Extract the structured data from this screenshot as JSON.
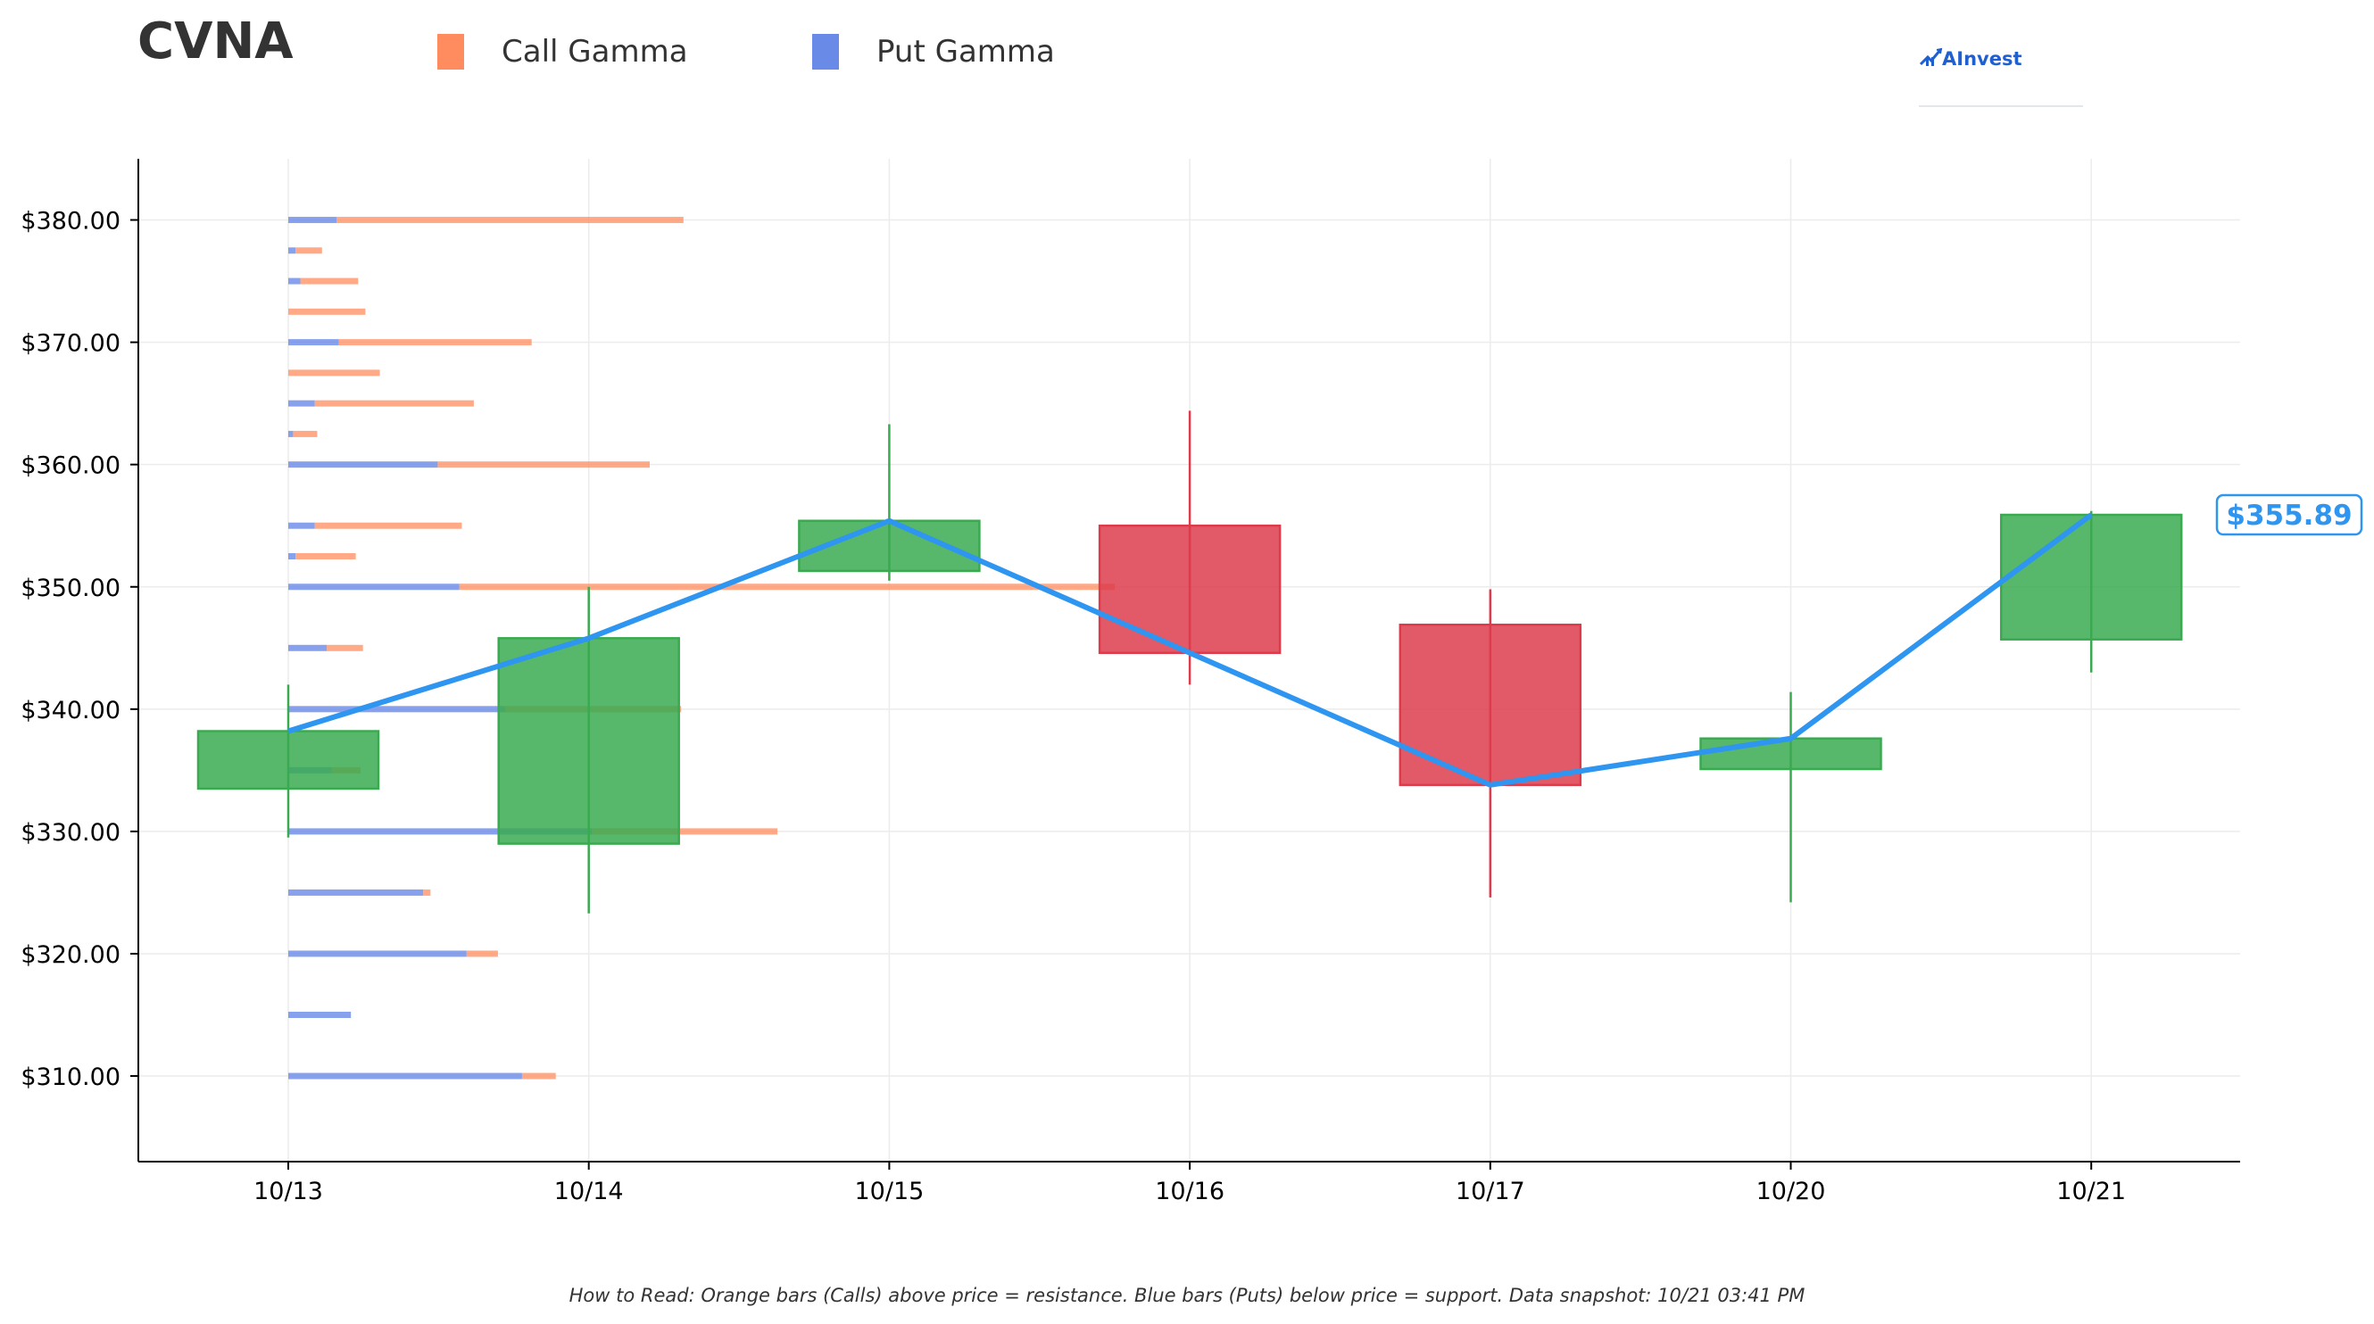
{
  "header": {
    "ticker": "CVNA",
    "brand": "AInvest"
  },
  "legend": [
    {
      "label": "Call Gamma",
      "color": "#ff8c5f"
    },
    {
      "label": "Put Gamma",
      "color": "#6a8ae8"
    }
  ],
  "footer": {
    "note": "How to Read: Orange bars (Calls) above price = resistance. Blue bars (Puts) below price = support. Data snapshot: 10/21 03:41 PM"
  },
  "colors": {
    "up": "#3aaa50",
    "down": "#dd3c4c",
    "price_line": "#2e95f0",
    "call": "#ff8c5f",
    "put": "#6a8ae8",
    "grid": "#ececec"
  },
  "chart_data": {
    "type": "candlestick",
    "title": "CVNA",
    "categories": [
      "10/13",
      "10/14",
      "10/15",
      "10/16",
      "10/17",
      "10/20",
      "10/21"
    ],
    "ylim": [
      303,
      385
    ],
    "yticks": [
      310,
      320,
      330,
      340,
      350,
      360,
      370,
      380
    ],
    "ytick_labels": [
      "$310.00",
      "$320.00",
      "$330.00",
      "$340.00",
      "$350.00",
      "$360.00",
      "$370.00",
      "$380.00"
    ],
    "grid": true,
    "candles": [
      {
        "date": "10/13",
        "open": 333.5,
        "high": 342.0,
        "low": 329.5,
        "close": 338.2
      },
      {
        "date": "10/14",
        "open": 329.0,
        "high": 350.0,
        "low": 323.3,
        "close": 345.8
      },
      {
        "date": "10/15",
        "open": 351.3,
        "high": 363.3,
        "low": 350.5,
        "close": 355.4
      },
      {
        "date": "10/16",
        "open": 355.0,
        "high": 364.4,
        "low": 342.0,
        "close": 344.6
      },
      {
        "date": "10/17",
        "open": 346.9,
        "high": 349.8,
        "low": 324.6,
        "close": 333.8
      },
      {
        "date": "10/20",
        "open": 335.1,
        "high": 341.4,
        "low": 324.2,
        "close": 337.6
      },
      {
        "date": "10/21",
        "open": 345.7,
        "high": 356.2,
        "low": 343.0,
        "close": 355.89
      }
    ],
    "price_line": {
      "name": "Close",
      "values": [
        338.2,
        345.8,
        355.4,
        344.6,
        333.8,
        337.6,
        355.89
      ],
      "last_label": "$355.89"
    },
    "gamma_levels": [
      {
        "strike": 380,
        "put": 1.0,
        "call": 7.2
      },
      {
        "strike": 377.5,
        "put": 0.15,
        "call": 0.55
      },
      {
        "strike": 375,
        "put": 0.25,
        "call": 1.2
      },
      {
        "strike": 372.5,
        "put": 0.0,
        "call": 1.6
      },
      {
        "strike": 370,
        "put": 1.05,
        "call": 4.0
      },
      {
        "strike": 367.5,
        "put": 0.0,
        "call": 1.9
      },
      {
        "strike": 365,
        "put": 0.55,
        "call": 3.3
      },
      {
        "strike": 362.5,
        "put": 0.1,
        "call": 0.5
      },
      {
        "strike": 360,
        "put": 3.1,
        "call": 4.4
      },
      {
        "strike": 355,
        "put": 0.55,
        "call": 3.05
      },
      {
        "strike": 352.5,
        "put": 0.15,
        "call": 1.25
      },
      {
        "strike": 350,
        "put": 3.55,
        "call": 13.6
      },
      {
        "strike": 345,
        "put": 0.8,
        "call": 0.75
      },
      {
        "strike": 340,
        "put": 4.5,
        "call": 3.65
      },
      {
        "strike": 335,
        "put": 0.9,
        "call": 0.6
      },
      {
        "strike": 330,
        "put": 6.3,
        "call": 3.85
      },
      {
        "strike": 325,
        "put": 2.8,
        "call": 0.15
      },
      {
        "strike": 320,
        "put": 3.7,
        "call": 0.65
      },
      {
        "strike": 315,
        "put": 1.3,
        "call": 0.0
      },
      {
        "strike": 310,
        "put": 4.85,
        "call": 0.7
      }
    ]
  }
}
